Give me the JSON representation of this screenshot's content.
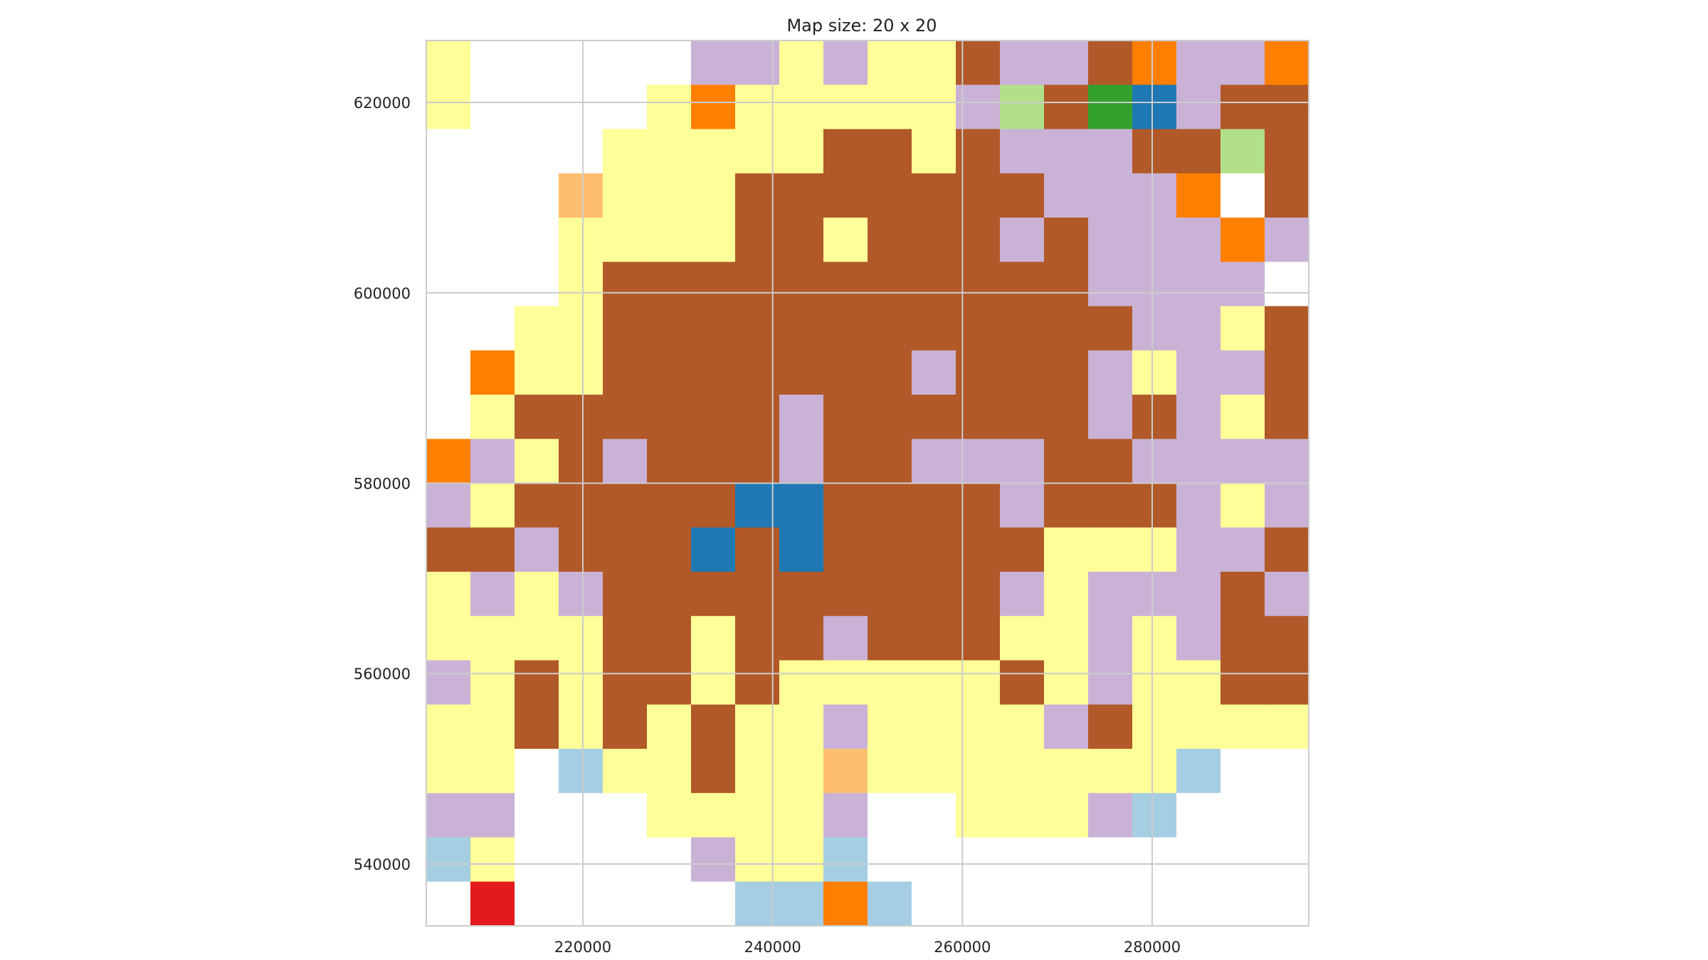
{
  "chart_data": {
    "type": "heatmap",
    "title": "Map size: 20 x 20",
    "xlabel": "",
    "ylabel": "",
    "xlim": [
      203500,
      296500
    ],
    "ylim": [
      533500,
      626500
    ],
    "x_ticks": [
      220000,
      240000,
      260000,
      280000
    ],
    "x_tick_labels": [
      "220000",
      "240000",
      "260000",
      "280000"
    ],
    "y_ticks": [
      540000,
      560000,
      580000,
      600000,
      620000
    ],
    "y_tick_labels": [
      "540000",
      "560000",
      "580000",
      "600000",
      "620000"
    ],
    "grid": true,
    "legend": "none",
    "cell_size": 4650,
    "rows": 20,
    "cols": 20,
    "palette": {
      "W": "#ffffff",
      "Y": "#ffff99",
      "B": "#b15928",
      "L": "#cab2d6",
      "O": "#ff7f00",
      "o": "#fdbf6f",
      "G": "#33a02c",
      "g": "#b2df8a",
      "D": "#1f78b4",
      "s": "#a6cee3",
      "R": "#e31a1c"
    },
    "grid_rows_top_to_bottom": [
      "YWWWWWLLYLYYBLLBOLLO",
      "YWWWWYOYYYYYLgBGDLBB",
      "WWWWYYYYYBBYBLLLBBgB",
      "WWWoYYYBBBBBBBLLLOWB",
      "WWWYYYYBBYBBBLBLLLOL",
      "WWWYBBBBBBBBBBBLLLLW",
      "WWYYBBBBBBBBBBBBLLYB",
      "WOYYBBBBBBBLBBBLYLLB",
      "WYBBBBBBLBBBBBBLBLYB",
      "OLYBLBBBLBBLLLBBLLLL",
      "LYBBBBBDDBBBBLBBBLYL",
      "BBLBBBDBDBBBBBYYYLLB",
      "YLYLBBBBBBBBBLYLLLBL",
      "YYYYBBYBBLBBBYYLYLBB",
      "LYBYBBYBYYYYYBYLYYBB",
      "YYBYBYBYYLYYYYLBYYYY",
      "YYWsYYBYYoYYYYYYYsWW",
      "LLWWWYYYYLWWYYYLsWWW",
      "sYWWWWLYYsWWWWWWWWWW",
      "WRWWWWWssOsWWWWWWWWW"
    ]
  }
}
